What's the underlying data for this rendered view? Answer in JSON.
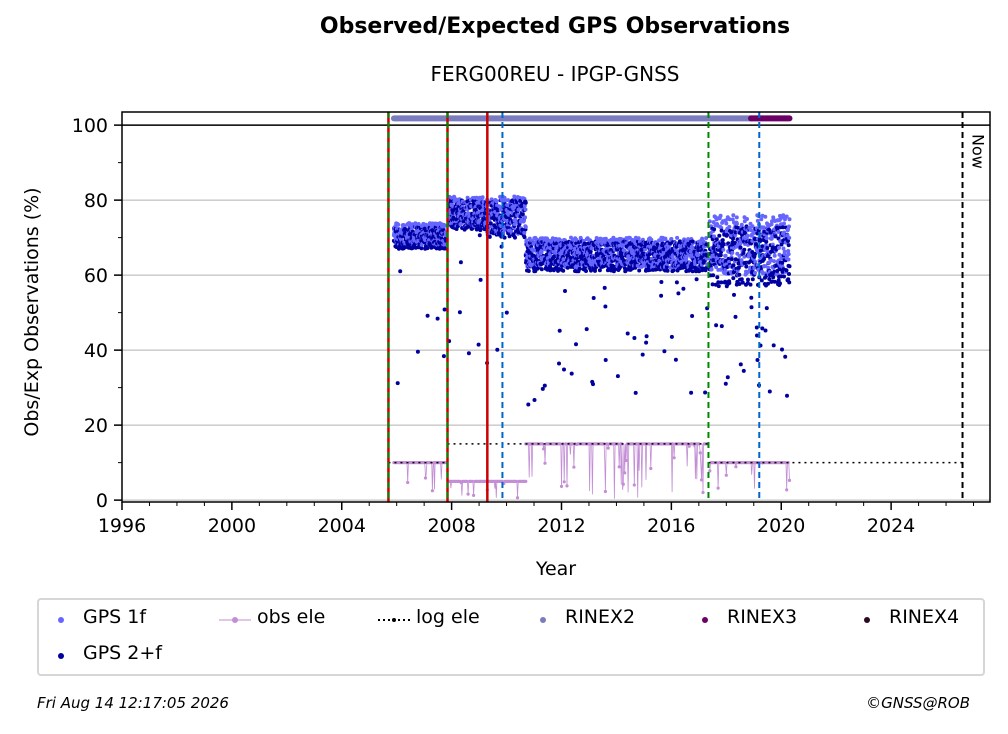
{
  "title": "Observed/Expected GPS Observations",
  "subtitle": "FERG00REU - IPGP-GNSS",
  "footer": {
    "timestamp": "Fri Aug 14 12:17:05 2026",
    "credit": "©GNSS@ROB"
  },
  "chart_data": {
    "type": "scatter",
    "title": "Observed/Expected GPS Observations",
    "xlabel": "Year",
    "ylabel": "Obs/Exp Observations (%)",
    "xlim": [
      1996,
      2027.6
    ],
    "ylim": [
      -0.5,
      103.5
    ],
    "x_ticks": [
      "1996",
      "2000",
      "2004",
      "2008",
      "2012",
      "2016",
      "2020",
      "2024"
    ],
    "y_ticks": [
      "0",
      "20",
      "40",
      "60",
      "80",
      "100"
    ],
    "grid": "horizontal",
    "legend_position": "bottom",
    "colors": {
      "gps1f": "#6666ff",
      "gps2f": "#0000a0",
      "obs_ele": "#c38ed6",
      "log_ele": "#000000",
      "rinex2": "#7b7bc0",
      "rinex3": "#6b0066",
      "rinex4": "#2a0a22",
      "event_red": "#cc0000",
      "event_green": "#008800",
      "event_blue": "#0066cc"
    },
    "now_label": "Now",
    "now_x": 2026.6,
    "event_lines": [
      {
        "x": 2005.7,
        "color": "red",
        "style": "solid"
      },
      {
        "x": 2005.7,
        "color": "green",
        "style": "dashed"
      },
      {
        "x": 2007.85,
        "color": "red",
        "style": "solid"
      },
      {
        "x": 2007.85,
        "color": "green",
        "style": "dashed"
      },
      {
        "x": 2009.3,
        "color": "red",
        "style": "solid"
      },
      {
        "x": 2009.85,
        "color": "blue",
        "style": "dashed"
      },
      {
        "x": 2017.35,
        "color": "green",
        "style": "dashed"
      },
      {
        "x": 2019.2,
        "color": "blue",
        "style": "dashed"
      }
    ],
    "reference_line_y": 100,
    "rinex_bars": [
      {
        "name": "RINEX2",
        "x_start": 2005.9,
        "x_end": 2018.9,
        "y": 101.8
      },
      {
        "name": "RINEX3",
        "x_start": 2018.9,
        "x_end": 2020.3,
        "y": 101.8
      }
    ],
    "log_ele_series": [
      {
        "x": [
          2005.7,
          2007.85
        ],
        "y": [
          10,
          10
        ]
      },
      {
        "x": [
          2007.85,
          2017.35
        ],
        "y": [
          15,
          15
        ]
      },
      {
        "x": [
          2017.35,
          2026.6
        ],
        "y": [
          10,
          10
        ]
      }
    ],
    "segments": [
      {
        "x_start": 2005.9,
        "x_end": 2007.8,
        "gps2f_level": 70,
        "gps2f_spread": 3,
        "gps1f_level": 71,
        "obs_ele_level": 10
      },
      {
        "x_start": 2007.9,
        "x_end": 2009.3,
        "gps2f_level": 76,
        "gps2f_spread": 4,
        "gps1f_level": 77,
        "obs_ele_level": 5
      },
      {
        "x_start": 2009.3,
        "x_end": 2010.7,
        "gps2f_level": 75,
        "gps2f_spread": 5,
        "gps1f_level": 76,
        "obs_ele_level": 5
      },
      {
        "x_start": 2010.7,
        "x_end": 2017.3,
        "gps2f_level": 65,
        "gps2f_spread": 4,
        "gps1f_level": 66,
        "obs_ele_level": 15
      },
      {
        "x_start": 2017.4,
        "x_end": 2020.3,
        "gps2f_level": 65,
        "gps2f_spread": 8,
        "gps1f_level": 68,
        "obs_ele_level": 10
      }
    ],
    "series": [
      {
        "name": "GPS 1f"
      },
      {
        "name": "obs ele"
      },
      {
        "name": "log ele"
      },
      {
        "name": "RINEX2"
      },
      {
        "name": "RINEX3"
      },
      {
        "name": "RINEX4"
      },
      {
        "name": "GPS 2+f"
      }
    ]
  }
}
